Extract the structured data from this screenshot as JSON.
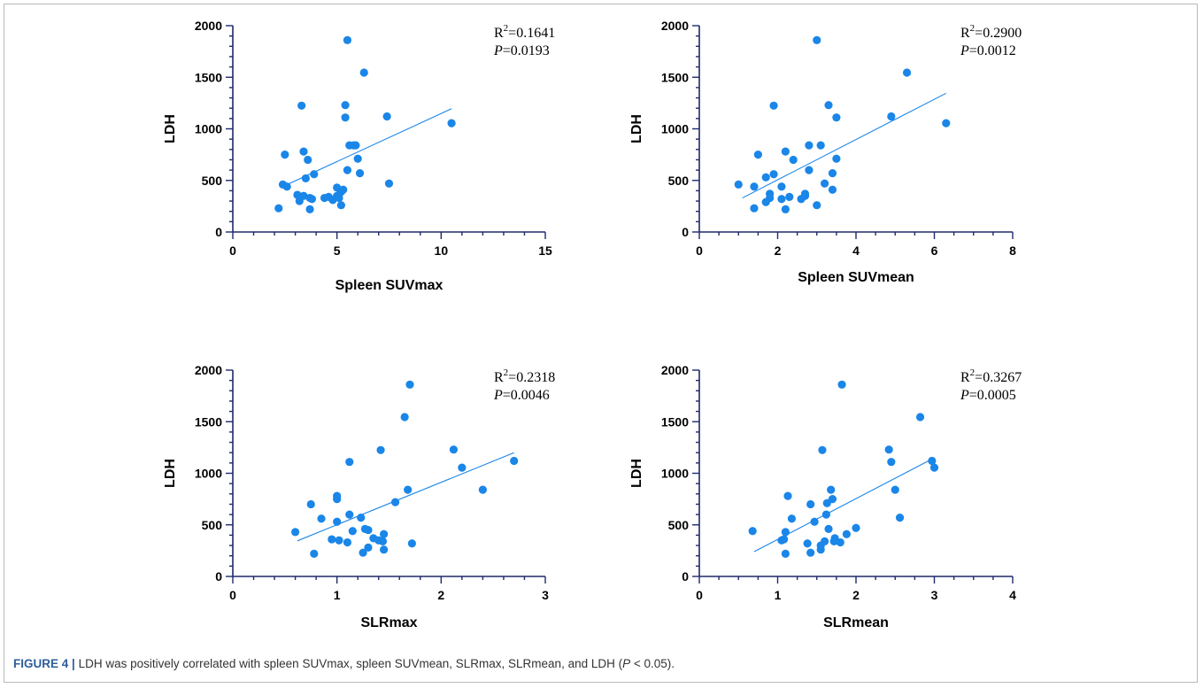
{
  "figure": {
    "caption_label": "FIGURE 4",
    "caption_separator": "|",
    "caption_text_1": "LDH was positively correlated with spleen SUVmax, spleen SUVmean, SLRmax, SLRmean, and LDH (",
    "caption_italic": "P",
    "caption_text_2": " < 0.05)."
  },
  "colors": {
    "point": "#1a86e8",
    "axis": "#1f2a6b",
    "caption_accent": "#2c5d9a"
  },
  "chart_data": [
    {
      "type": "scatter",
      "xlabel": "Spleen SUVmax",
      "ylabel": "LDH",
      "xlim": [
        0,
        15
      ],
      "ylim": [
        0,
        2000
      ],
      "xticks": [
        0,
        5,
        10,
        15
      ],
      "yticks": [
        0,
        500,
        1000,
        1500,
        2000
      ],
      "xminor": 1,
      "yminor": 100,
      "r2_base": "R",
      "r2_sup": "2",
      "r2_value": "=0.1641",
      "p_label": "P",
      "p_value": "=0.0193",
      "fit": [
        [
          2.5,
          450
        ],
        [
          10.5,
          1195
        ]
      ],
      "points": [
        [
          2.2,
          230
        ],
        [
          2.4,
          460
        ],
        [
          2.5,
          750
        ],
        [
          2.6,
          440
        ],
        [
          3.1,
          360
        ],
        [
          3.2,
          300
        ],
        [
          3.3,
          1225
        ],
        [
          3.4,
          780
        ],
        [
          3.4,
          350
        ],
        [
          3.5,
          520
        ],
        [
          3.6,
          700
        ],
        [
          3.7,
          330
        ],
        [
          3.7,
          220
        ],
        [
          3.8,
          320
        ],
        [
          3.9,
          560
        ],
        [
          4.4,
          330
        ],
        [
          4.6,
          340
        ],
        [
          4.8,
          310
        ],
        [
          5.0,
          430
        ],
        [
          5.0,
          350
        ],
        [
          5.1,
          330
        ],
        [
          5.2,
          390
        ],
        [
          5.2,
          260
        ],
        [
          5.3,
          410
        ],
        [
          5.4,
          1230
        ],
        [
          5.4,
          1110
        ],
        [
          5.5,
          600
        ],
        [
          5.5,
          1860
        ],
        [
          5.6,
          840
        ],
        [
          5.8,
          840
        ],
        [
          5.9,
          840
        ],
        [
          6.0,
          710
        ],
        [
          6.1,
          570
        ],
        [
          6.3,
          1545
        ],
        [
          7.4,
          1120
        ],
        [
          7.5,
          470
        ],
        [
          10.5,
          1055
        ]
      ]
    },
    {
      "type": "scatter",
      "xlabel": "Spleen SUVmean",
      "ylabel": "LDH",
      "xlim": [
        0,
        8
      ],
      "ylim": [
        0,
        2000
      ],
      "xticks": [
        0,
        2,
        4,
        6,
        8
      ],
      "yticks": [
        0,
        500,
        1000,
        1500,
        2000
      ],
      "xminor": 0.5,
      "yminor": 100,
      "r2_base": "R",
      "r2_sup": "2",
      "r2_value": "=0.2900",
      "p_label": "P",
      "p_value": "=0.0012",
      "fit": [
        [
          1.1,
          330
        ],
        [
          6.3,
          1345
        ]
      ],
      "points": [
        [
          1.0,
          460
        ],
        [
          1.4,
          440
        ],
        [
          1.4,
          230
        ],
        [
          1.5,
          750
        ],
        [
          1.7,
          530
        ],
        [
          1.7,
          290
        ],
        [
          1.8,
          370
        ],
        [
          1.8,
          330
        ],
        [
          1.9,
          560
        ],
        [
          1.9,
          1225
        ],
        [
          2.1,
          440
        ],
        [
          2.1,
          320
        ],
        [
          2.2,
          780
        ],
        [
          2.2,
          220
        ],
        [
          2.3,
          340
        ],
        [
          2.4,
          700
        ],
        [
          2.6,
          320
        ],
        [
          2.7,
          350
        ],
        [
          2.7,
          370
        ],
        [
          2.8,
          600
        ],
        [
          2.8,
          840
        ],
        [
          3.0,
          260
        ],
        [
          3.0,
          1860
        ],
        [
          3.1,
          840
        ],
        [
          3.2,
          470
        ],
        [
          3.3,
          1230
        ],
        [
          3.4,
          570
        ],
        [
          3.4,
          410
        ],
        [
          3.5,
          1110
        ],
        [
          3.5,
          710
        ],
        [
          4.9,
          1120
        ],
        [
          5.3,
          1545
        ],
        [
          6.3,
          1055
        ]
      ]
    },
    {
      "type": "scatter",
      "xlabel": "SLRmax",
      "ylabel": "LDH",
      "xlim": [
        0,
        3
      ],
      "ylim": [
        0,
        2000
      ],
      "xticks": [
        0,
        1,
        2,
        3
      ],
      "yticks": [
        0,
        500,
        1000,
        1500,
        2000
      ],
      "xminor": 0.2,
      "yminor": 100,
      "r2_base": "R",
      "r2_sup": "2",
      "r2_value": "=0.2318",
      "p_label": "P",
      "p_value": "=0.0046",
      "fit": [
        [
          0.62,
          345
        ],
        [
          2.7,
          1200
        ]
      ],
      "points": [
        [
          0.6,
          430
        ],
        [
          0.75,
          700
        ],
        [
          0.78,
          220
        ],
        [
          0.85,
          560
        ],
        [
          0.95,
          360
        ],
        [
          1.0,
          780
        ],
        [
          1.0,
          750
        ],
        [
          1.0,
          530
        ],
        [
          1.02,
          350
        ],
        [
          1.1,
          330
        ],
        [
          1.12,
          1110
        ],
        [
          1.12,
          600
        ],
        [
          1.15,
          440
        ],
        [
          1.23,
          570
        ],
        [
          1.25,
          230
        ],
        [
          1.27,
          460
        ],
        [
          1.3,
          280
        ],
        [
          1.3,
          450
        ],
        [
          1.35,
          370
        ],
        [
          1.4,
          350
        ],
        [
          1.42,
          1225
        ],
        [
          1.44,
          340
        ],
        [
          1.45,
          410
        ],
        [
          1.45,
          260
        ],
        [
          1.56,
          720
        ],
        [
          1.65,
          1545
        ],
        [
          1.68,
          840
        ],
        [
          1.7,
          1860
        ],
        [
          1.72,
          320
        ],
        [
          2.12,
          1230
        ],
        [
          2.2,
          1055
        ],
        [
          2.4,
          840
        ],
        [
          2.7,
          1120
        ]
      ]
    },
    {
      "type": "scatter",
      "xlabel": "SLRmean",
      "ylabel": "LDH",
      "xlim": [
        0,
        4
      ],
      "ylim": [
        0,
        2000
      ],
      "xticks": [
        0,
        1,
        2,
        3,
        4
      ],
      "yticks": [
        0,
        500,
        1000,
        1500,
        2000
      ],
      "xminor": 0.25,
      "yminor": 100,
      "r2_base": "R",
      "r2_sup": "2",
      "r2_value": "=0.3267",
      "p_label": "P",
      "p_value": "=0.0005",
      "fit": [
        [
          0.7,
          240
        ],
        [
          3.0,
          1150
        ]
      ],
      "points": [
        [
          0.68,
          440
        ],
        [
          1.05,
          350
        ],
        [
          1.08,
          360
        ],
        [
          1.1,
          430
        ],
        [
          1.1,
          220
        ],
        [
          1.13,
          780
        ],
        [
          1.18,
          560
        ],
        [
          1.38,
          320
        ],
        [
          1.42,
          700
        ],
        [
          1.42,
          230
        ],
        [
          1.47,
          530
        ],
        [
          1.55,
          300
        ],
        [
          1.55,
          260
        ],
        [
          1.57,
          1225
        ],
        [
          1.6,
          340
        ],
        [
          1.62,
          600
        ],
        [
          1.63,
          710
        ],
        [
          1.65,
          460
        ],
        [
          1.68,
          840
        ],
        [
          1.7,
          750
        ],
        [
          1.72,
          340
        ],
        [
          1.73,
          370
        ],
        [
          1.8,
          330
        ],
        [
          1.82,
          1860
        ],
        [
          1.88,
          410
        ],
        [
          2.0,
          470
        ],
        [
          2.42,
          1230
        ],
        [
          2.45,
          1110
        ],
        [
          2.5,
          840
        ],
        [
          2.56,
          570
        ],
        [
          2.82,
          1545
        ],
        [
          2.97,
          1120
        ],
        [
          3.0,
          1055
        ]
      ]
    }
  ]
}
